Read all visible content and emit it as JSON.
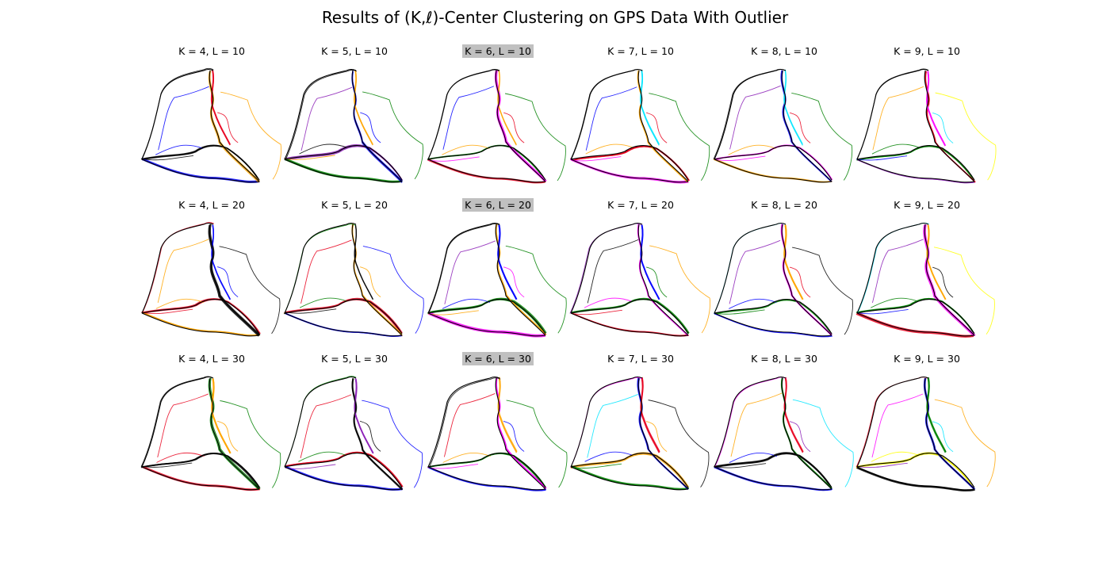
{
  "figure": {
    "title": "Results of (K,ℓ)-Center Clustering on GPS Data With Outlier"
  },
  "palette": {
    "black": "#000000",
    "red": "#e8001c",
    "blue": "#0000ff",
    "green": "#008000",
    "orange": "#ffa500",
    "purple": "#8b1fb6",
    "magenta": "#ff00ff",
    "cyan": "#00e5ff",
    "yellow": "#ffff00",
    "light_red": "#f04a4a"
  },
  "chart_data": [
    {
      "type": "trajectory-clusters",
      "title": "K = 4, L = 10",
      "K": 4,
      "L": 10,
      "highlighted": false,
      "cluster_colors": [
        "black",
        "blue",
        "orange",
        "red"
      ]
    },
    {
      "type": "trajectory-clusters",
      "title": "K = 5, L = 10",
      "K": 5,
      "L": 10,
      "highlighted": false,
      "cluster_colors": [
        "black",
        "purple",
        "green",
        "blue",
        "orange"
      ]
    },
    {
      "type": "trajectory-clusters",
      "title": "K = 6, L = 10",
      "K": 6,
      "L": 10,
      "highlighted": true,
      "cluster_colors": [
        "black",
        "blue",
        "green",
        "red",
        "magenta",
        "orange"
      ]
    },
    {
      "type": "trajectory-clusters",
      "title": "K = 7, L = 10",
      "K": 7,
      "L": 10,
      "highlighted": false,
      "cluster_colors": [
        "black",
        "blue",
        "green",
        "red",
        "magenta",
        "orange",
        "cyan"
      ]
    },
    {
      "type": "trajectory-clusters",
      "title": "K = 8, L = 10",
      "K": 8,
      "L": 10,
      "highlighted": false,
      "cluster_colors": [
        "black",
        "purple",
        "green",
        "red",
        "magenta",
        "orange",
        "blue",
        "cyan"
      ]
    },
    {
      "type": "trajectory-clusters",
      "title": "K = 9, L = 10",
      "K": 9,
      "L": 10,
      "highlighted": false,
      "cluster_colors": [
        "black",
        "orange",
        "yellow",
        "cyan",
        "blue",
        "green",
        "purple",
        "red",
        "magenta"
      ]
    },
    {
      "type": "trajectory-clusters",
      "title": "K = 4, L = 20",
      "K": 4,
      "L": 20,
      "highlighted": false,
      "cluster_colors": [
        "black",
        "blue",
        "red",
        "orange"
      ]
    },
    {
      "type": "trajectory-clusters",
      "title": "K = 5, L = 20",
      "K": 5,
      "L": 20,
      "highlighted": false,
      "cluster_colors": [
        "black",
        "green",
        "red",
        "blue",
        "orange"
      ]
    },
    {
      "type": "trajectory-clusters",
      "title": "K = 6, L = 20",
      "K": 6,
      "L": 20,
      "highlighted": true,
      "cluster_colors": [
        "black",
        "purple",
        "green",
        "magenta",
        "orange",
        "blue"
      ]
    },
    {
      "type": "trajectory-clusters",
      "title": "K = 7, L = 20",
      "K": 7,
      "L": 20,
      "highlighted": false,
      "cluster_colors": [
        "black",
        "orange",
        "green",
        "red",
        "magenta",
        "blue",
        "purple"
      ]
    },
    {
      "type": "trajectory-clusters",
      "title": "K = 8, L = 20",
      "K": 8,
      "L": 20,
      "highlighted": false,
      "cluster_colors": [
        "black",
        "red",
        "green",
        "blue",
        "magenta",
        "orange",
        "cyan",
        "purple"
      ]
    },
    {
      "type": "trajectory-clusters",
      "title": "K = 9, L = 20",
      "K": 9,
      "L": 20,
      "highlighted": false,
      "cluster_colors": [
        "black",
        "blue",
        "green",
        "red",
        "magenta",
        "orange",
        "cyan",
        "purple",
        "yellow"
      ]
    },
    {
      "type": "trajectory-clusters",
      "title": "K = 4, L = 30",
      "K": 4,
      "L": 30,
      "highlighted": false,
      "cluster_colors": [
        "black",
        "red",
        "green",
        "orange"
      ]
    },
    {
      "type": "trajectory-clusters",
      "title": "K = 5, L = 30",
      "K": 5,
      "L": 30,
      "highlighted": false,
      "cluster_colors": [
        "black",
        "purple",
        "green",
        "red",
        "blue"
      ]
    },
    {
      "type": "trajectory-clusters",
      "title": "K = 6, L = 30",
      "K": 6,
      "L": 30,
      "highlighted": true,
      "cluster_colors": [
        "black",
        "red",
        "green",
        "blue",
        "magenta",
        "orange"
      ]
    },
    {
      "type": "trajectory-clusters",
      "title": "K = 7, L = 30",
      "K": 7,
      "L": 30,
      "highlighted": false,
      "cluster_colors": [
        "black",
        "orange",
        "green",
        "blue",
        "red",
        "magenta",
        "cyan"
      ]
    },
    {
      "type": "trajectory-clusters",
      "title": "K = 8, L = 30",
      "K": 8,
      "L": 30,
      "highlighted": false,
      "cluster_colors": [
        "black",
        "blue",
        "green",
        "red",
        "magenta",
        "orange",
        "cyan",
        "purple"
      ]
    },
    {
      "type": "trajectory-clusters",
      "title": "K = 9, L = 30",
      "K": 9,
      "L": 30,
      "highlighted": false,
      "cluster_colors": [
        "black",
        "blue",
        "green",
        "red",
        "magenta",
        "orange",
        "cyan",
        "purple",
        "yellow"
      ]
    }
  ]
}
